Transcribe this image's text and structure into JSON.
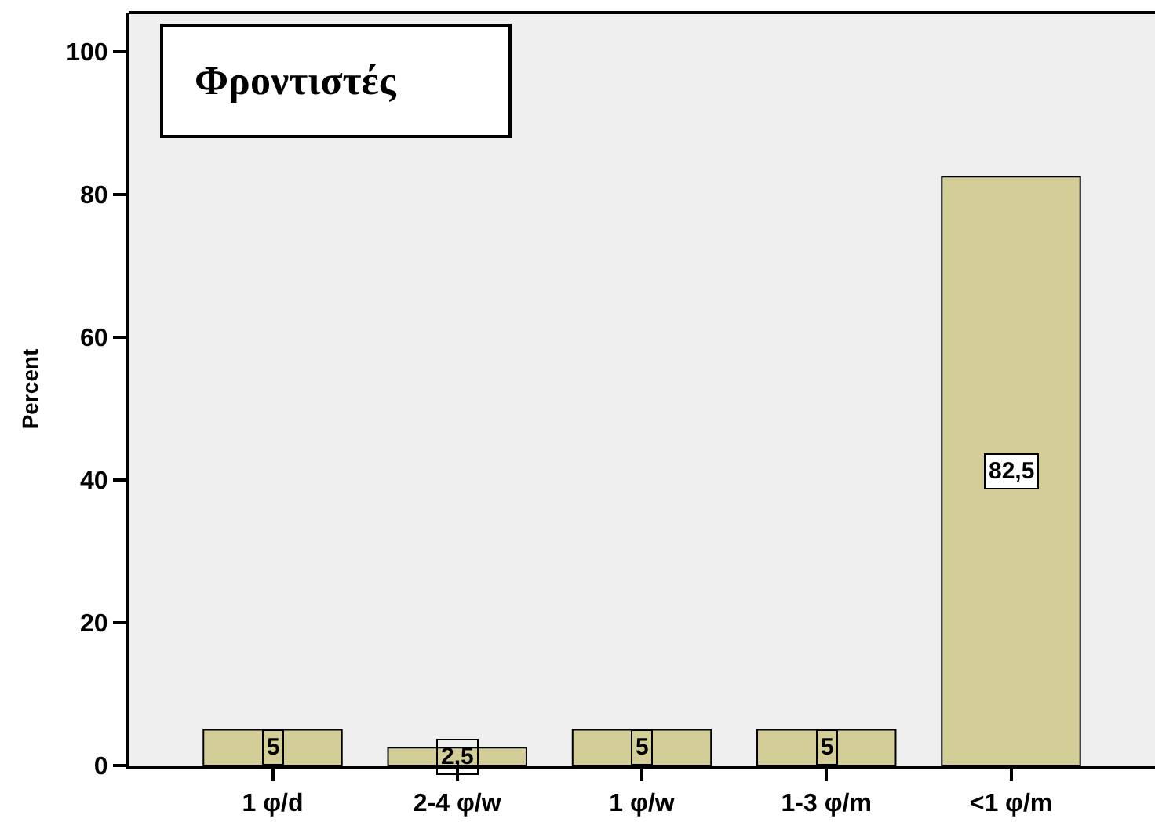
{
  "chart_data": {
    "type": "bar",
    "ylabel": "Percent",
    "categories": [
      "1 φ/d",
      "2-4 φ/w",
      "1 φ/w",
      "1-3 φ/m",
      "<1 φ/m"
    ],
    "values": [
      5,
      2.5,
      5,
      5,
      82.5
    ],
    "value_labels": [
      "5",
      "2,5",
      "5",
      "5",
      "82,5"
    ],
    "color": "#d3ce97",
    "ylim": [
      0,
      105.5
    ],
    "yticks": [
      0,
      20,
      40,
      60,
      80,
      100
    ],
    "grid": false,
    "legend": false,
    "annotations": [
      "Φροντιστές"
    ]
  }
}
